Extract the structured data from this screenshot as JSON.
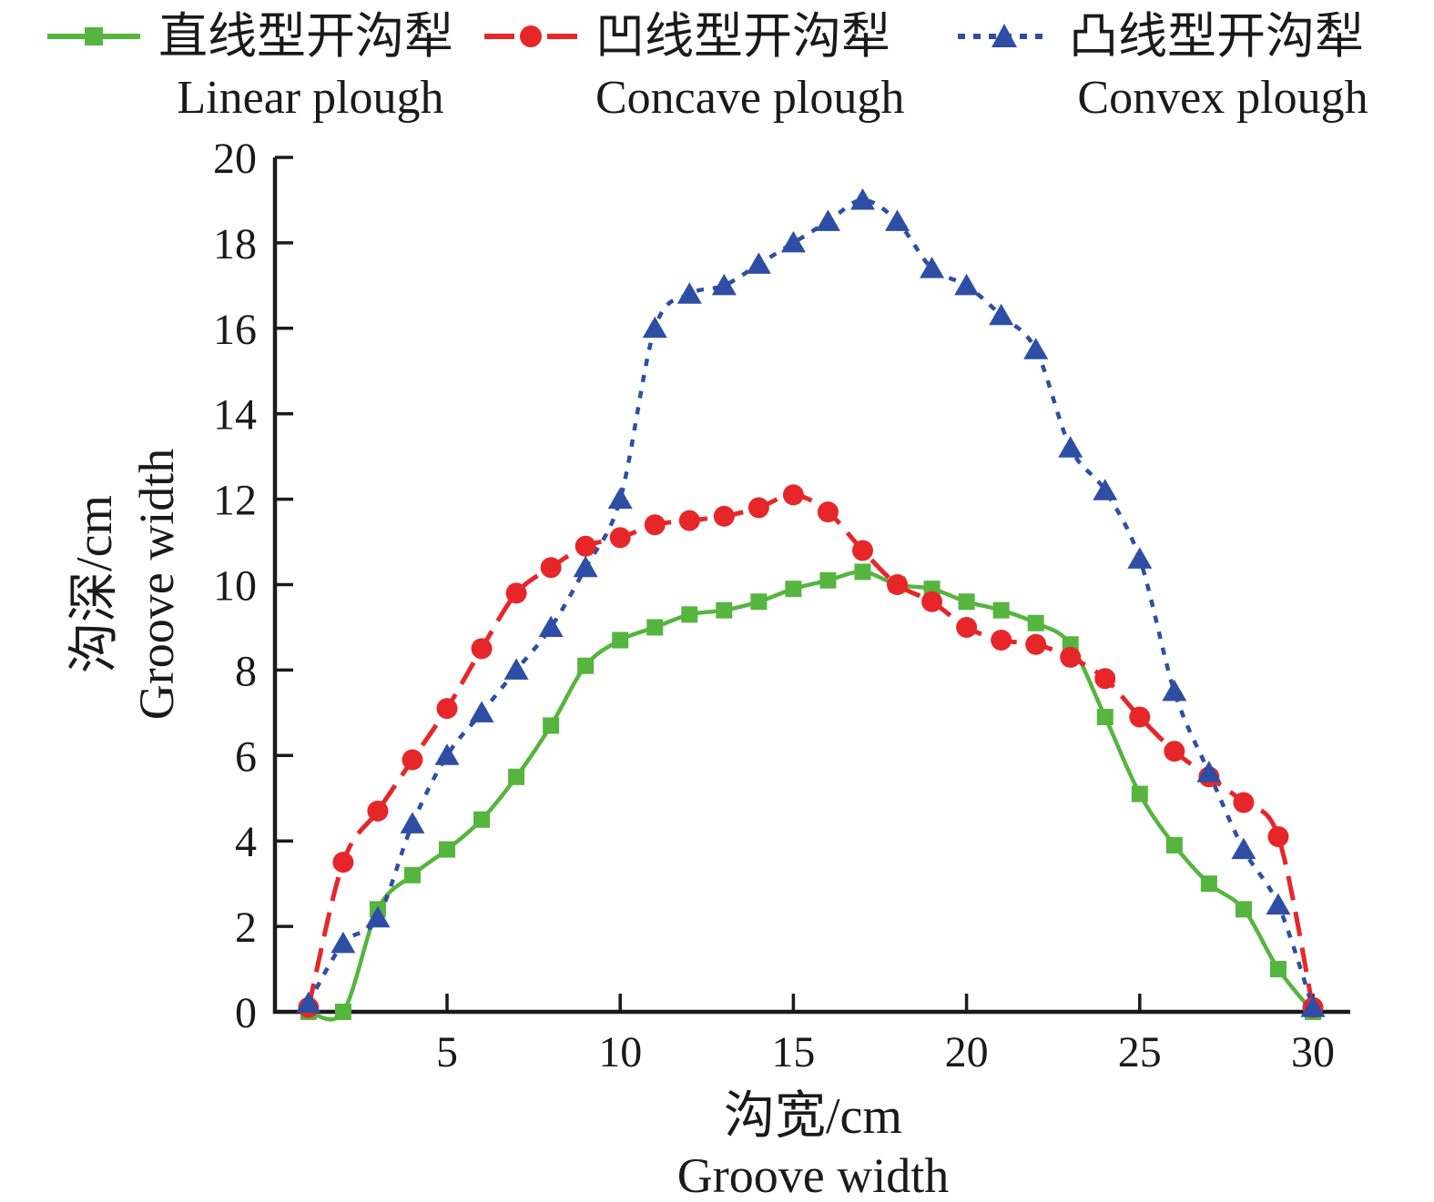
{
  "colors": {
    "linear_green": "#55B53E",
    "concave_red": "#E7262A",
    "convex_blue": "#2E4EA5",
    "axis_black": "#1a1a1a"
  },
  "chart_data": {
    "type": "line",
    "x": [
      1,
      2,
      3,
      4,
      5,
      6,
      7,
      8,
      9,
      10,
      11,
      12,
      13,
      14,
      15,
      16,
      17,
      18,
      19,
      20,
      21,
      22,
      23,
      24,
      25,
      26,
      27,
      28,
      29,
      30
    ],
    "series": [
      {
        "name_cn": "直线型开沟犁",
        "name_en": "Linear plough",
        "color": "#55B53E",
        "line_style": "solid",
        "marker": "square",
        "values": [
          0,
          0,
          2.4,
          3.2,
          3.8,
          4.5,
          5.5,
          6.7,
          8.1,
          8.7,
          9.0,
          9.3,
          9.4,
          9.6,
          9.9,
          10.1,
          10.3,
          10.0,
          9.9,
          9.6,
          9.4,
          9.1,
          8.6,
          6.9,
          5.1,
          3.9,
          3.0,
          2.4,
          1.0,
          0
        ]
      },
      {
        "name_cn": "凹线型开沟犁",
        "name_en": "Concave plough",
        "color": "#E7262A",
        "line_style": "dashed",
        "marker": "circle",
        "values": [
          0.1,
          3.5,
          4.7,
          5.9,
          7.1,
          8.5,
          9.8,
          10.4,
          10.9,
          11.1,
          11.4,
          11.5,
          11.6,
          11.8,
          12.1,
          11.7,
          10.8,
          10.0,
          9.6,
          9.0,
          8.7,
          8.6,
          8.3,
          7.8,
          6.9,
          6.1,
          5.5,
          4.9,
          4.1,
          0.1
        ]
      },
      {
        "name_cn": "凸线型开沟犁",
        "name_en": "Convex plough",
        "color": "#2E4EA5",
        "line_style": "dotted",
        "marker": "triangle",
        "values": [
          0.2,
          1.6,
          2.2,
          4.4,
          6.0,
          7.0,
          8.0,
          9.0,
          10.4,
          12.0,
          16.0,
          16.8,
          17.0,
          17.5,
          18.0,
          18.5,
          19.0,
          18.5,
          17.4,
          17.0,
          16.3,
          15.5,
          13.2,
          12.2,
          10.6,
          7.5,
          5.6,
          3.8,
          2.5,
          0.1
        ]
      }
    ],
    "title": "",
    "xlabel_cn": "沟宽/cm",
    "xlabel_en": "Groove width",
    "ylabel_cn": "沟深/cm",
    "ylabel_en": "Groove width",
    "x_ticks": [
      5,
      10,
      15,
      20,
      25,
      30
    ],
    "y_ticks": [
      0,
      2,
      4,
      6,
      8,
      10,
      12,
      14,
      16,
      18,
      20
    ],
    "xlim": [
      0,
      31.1
    ],
    "ylim": [
      0,
      20
    ],
    "grid": false,
    "legend_position": "top",
    "axis_color": "#1a1a1a"
  }
}
